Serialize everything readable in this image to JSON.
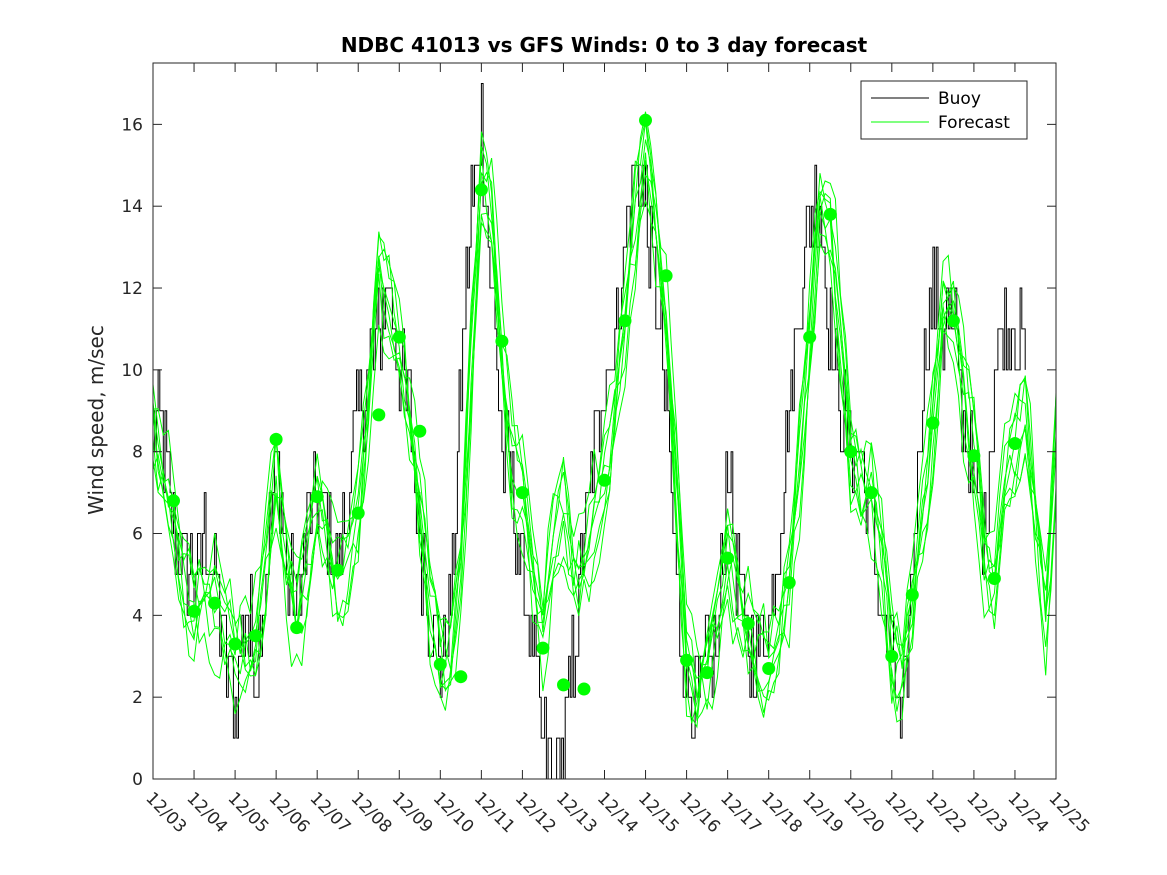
{
  "chart_data": {
    "type": "line",
    "title": "NDBC 41013 vs GFS Winds: 0 to 3 day forecast",
    "xlabel": "",
    "ylabel": "Wind speed, m/sec",
    "ylim": [
      0,
      17.5
    ],
    "yticks": [
      0,
      2,
      4,
      6,
      8,
      10,
      12,
      14,
      16
    ],
    "xlim_days": [
      3,
      25
    ],
    "xtick_labels": [
      "12/03",
      "12/04",
      "12/05",
      "12/06",
      "12/07",
      "12/08",
      "12/09",
      "12/10",
      "12/11",
      "12/12",
      "12/13",
      "12/14",
      "12/15",
      "12/16",
      "12/17",
      "12/18",
      "12/19",
      "12/20",
      "12/21",
      "12/22",
      "12/23",
      "12/24",
      "12/25"
    ],
    "grid": false,
    "legend": {
      "placement": "top-right",
      "entries": [
        "Buoy",
        "Forecast"
      ]
    },
    "colors": {
      "buoy": "#000000",
      "forecast": "#00ff00",
      "axes": "#262626"
    },
    "series": [
      {
        "name": "Buoy",
        "x": [
          3.0,
          3.25,
          3.5,
          3.75,
          4.0,
          4.25,
          4.5,
          4.75,
          5.0,
          5.25,
          5.5,
          5.75,
          6.0,
          6.25,
          6.5,
          6.75,
          7.0,
          7.25,
          7.5,
          7.75,
          8.0,
          8.25,
          8.5,
          8.75,
          9.0,
          9.25,
          9.5,
          9.75,
          10.0,
          10.25,
          10.5,
          10.75,
          11.0,
          11.25,
          11.5,
          11.75,
          12.0,
          12.25,
          12.5,
          12.75,
          13.0,
          13.25,
          13.5,
          13.75,
          14.0,
          14.25,
          14.5,
          14.75,
          15.0,
          15.25,
          15.5,
          15.75,
          16.0,
          16.25,
          16.5,
          16.75,
          17.0,
          17.25,
          17.5,
          17.75,
          18.0,
          18.25,
          18.5,
          18.75,
          19.0,
          19.25,
          19.5,
          19.75,
          20.0,
          20.25,
          20.5,
          20.75,
          21.0,
          21.25,
          21.5,
          21.75,
          22.0,
          22.25,
          22.5,
          22.75,
          23.0,
          23.25,
          23.5,
          23.75,
          24.0,
          24.25
        ],
        "y": [
          9,
          8,
          6,
          5,
          5,
          6,
          5,
          3,
          2,
          4,
          3,
          5,
          8,
          5,
          4,
          6,
          7,
          6,
          5,
          7,
          9,
          10,
          11,
          12,
          10,
          9,
          6,
          4,
          3,
          4,
          10,
          14,
          16,
          12,
          8,
          7,
          5,
          3,
          1,
          0,
          1,
          3,
          6,
          8,
          10,
          11,
          13,
          15,
          14,
          12,
          9,
          5,
          2,
          2,
          3,
          3,
          8,
          5,
          3,
          3,
          4,
          6,
          9,
          12,
          14,
          14,
          11,
          9,
          8,
          8,
          6,
          4,
          3,
          1,
          5,
          10,
          12,
          11,
          11,
          9,
          7,
          6,
          10,
          11,
          11,
          10
        ],
        "noise": 1.2
      },
      {
        "name": "Forecast",
        "x": [
          3.0,
          3.25,
          3.5,
          3.75,
          4.0,
          4.25,
          4.5,
          4.75,
          5.0,
          5.25,
          5.5,
          5.75,
          6.0,
          6.25,
          6.5,
          6.75,
          7.0,
          7.25,
          7.5,
          7.75,
          8.0,
          8.25,
          8.5,
          8.75,
          9.0,
          9.25,
          9.5,
          9.75,
          10.0,
          10.25,
          10.5,
          10.75,
          11.0,
          11.25,
          11.5,
          11.75,
          12.0,
          12.25,
          12.5,
          12.75,
          13.0,
          13.25,
          13.5,
          13.75,
          14.0,
          14.25,
          14.5,
          14.75,
          15.0,
          15.25,
          15.5,
          15.75,
          16.0,
          16.25,
          16.5,
          16.75,
          17.0,
          17.25,
          17.5,
          17.75,
          18.0,
          18.25,
          18.5,
          18.75,
          19.0,
          19.25,
          19.5,
          19.75,
          20.0,
          20.25,
          20.5,
          20.75,
          21.0,
          21.25,
          21.5,
          21.75,
          22.0,
          22.25,
          22.5,
          22.75,
          23.0,
          23.25,
          23.5,
          23.75,
          24.0,
          24.25,
          24.5,
          24.75,
          25.0
        ],
        "y": [
          8.5,
          7.5,
          6.5,
          5.0,
          4.2,
          4.5,
          4.3,
          3.8,
          3.2,
          3.2,
          3.5,
          5.5,
          7.5,
          5.0,
          3.8,
          5.0,
          6.8,
          5.8,
          5.0,
          5.5,
          6.5,
          9.0,
          12.5,
          11.5,
          10.5,
          9.0,
          7.0,
          4.5,
          2.8,
          2.8,
          5.0,
          10.0,
          14.5,
          14.0,
          10.5,
          8.0,
          7.0,
          5.0,
          3.5,
          5.5,
          6.5,
          5.0,
          5.5,
          6.5,
          7.3,
          9.0,
          11.0,
          13.5,
          15.3,
          13.5,
          11.5,
          7.5,
          3.0,
          2.2,
          2.6,
          4.0,
          5.3,
          4.5,
          3.7,
          3.0,
          2.8,
          3.5,
          4.8,
          7.5,
          10.8,
          14.0,
          13.8,
          11.0,
          8.0,
          7.0,
          7.0,
          5.5,
          3.0,
          2.6,
          4.5,
          6.5,
          8.7,
          11.5,
          11.2,
          9.5,
          7.9,
          5.5,
          4.9,
          7.5,
          8.2,
          9.0,
          6.5,
          3.5,
          8.0
        ],
        "markers_x": [
          3.5,
          4.0,
          4.5,
          5.0,
          5.5,
          6.0,
          6.5,
          7.0,
          7.5,
          8.0,
          8.5,
          9.0,
          9.5,
          10.0,
          10.5,
          11.0,
          11.5,
          12.0,
          12.5,
          13.0,
          13.5,
          14.0,
          14.5,
          15.0,
          15.5,
          16.0,
          16.5,
          17.0,
          17.5,
          18.0,
          18.5,
          19.0,
          19.5,
          20.0,
          20.5,
          21.0,
          21.5,
          22.0,
          22.5,
          23.0,
          23.5,
          24.0
        ],
        "markers_y": [
          6.8,
          4.1,
          4.3,
          3.3,
          3.5,
          8.3,
          3.7,
          6.9,
          5.1,
          6.5,
          8.9,
          10.8,
          8.5,
          2.8,
          2.5,
          14.4,
          10.7,
          7.0,
          3.2,
          2.3,
          2.2,
          7.3,
          11.2,
          16.1,
          12.3,
          2.9,
          2.6,
          5.4,
          3.8,
          2.7,
          4.8,
          10.8,
          13.8,
          8.0,
          7.0,
          3.0,
          4.5,
          8.7,
          11.2,
          7.9,
          4.9,
          8.2
        ],
        "members": 8,
        "spread": 1.1
      }
    ]
  }
}
